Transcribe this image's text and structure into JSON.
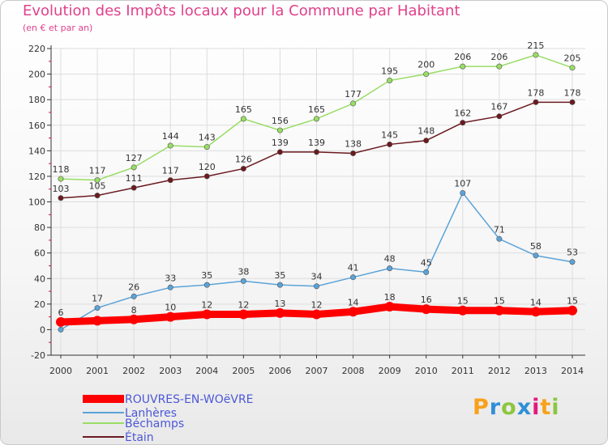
{
  "title": "Evolution des Impôts locaux pour la Commune par Habitant",
  "subtitle": "(en € et par an)",
  "brand": {
    "letters": [
      "P",
      "r",
      "o",
      "x",
      "i",
      "t",
      "i"
    ],
    "colors": [
      "#f7a21b",
      "#2f8fd8",
      "#8cc63f",
      "#2f8fd8",
      "#e2197c",
      "#f7a21b",
      "#8cc63f"
    ]
  },
  "colors": {
    "title": "#e0418c",
    "axis": "#333333",
    "grid": "#dddddd",
    "ticks_minor": "#d2123a",
    "legend_text": "#4c58d6"
  },
  "chart_data": {
    "type": "line",
    "title": "Evolution des Impôts locaux pour la Commune par Habitant",
    "subtitle": "(en € et par an)",
    "x": [
      "2000",
      "2001",
      "2002",
      "2003",
      "2004",
      "2005",
      "2006",
      "2007",
      "2008",
      "2009",
      "2010",
      "2011",
      "2012",
      "2013",
      "2014"
    ],
    "ylim": [
      -20,
      220
    ],
    "yticks": [
      -20,
      0,
      20,
      40,
      60,
      80,
      100,
      120,
      140,
      160,
      180,
      200,
      220
    ],
    "grid": true,
    "legend_position": "bottom-left",
    "series": [
      {
        "name": "ROUVRES-EN-WOëVRE",
        "color": "#ff0000",
        "values": [
          6,
          7,
          8,
          10,
          12,
          12,
          13,
          12,
          14,
          18,
          16,
          15,
          15,
          14,
          15
        ]
      },
      {
        "name": "Lanhères",
        "color": "#5ba3d8",
        "values": [
          0,
          17,
          26,
          33,
          35,
          38,
          35,
          34,
          41,
          48,
          45,
          107,
          71,
          58,
          53
        ]
      },
      {
        "name": "Béchamps",
        "color": "#99dd66",
        "values": [
          118,
          117,
          127,
          144,
          143,
          165,
          156,
          165,
          177,
          195,
          200,
          206,
          206,
          215,
          205
        ]
      },
      {
        "name": "Étain",
        "color": "#6b1a1f",
        "values": [
          103,
          105,
          111,
          117,
          120,
          126,
          139,
          139,
          138,
          145,
          148,
          162,
          167,
          178,
          178
        ]
      }
    ],
    "data_labels": [
      [
        6,
        null,
        8,
        10,
        12,
        12,
        13,
        12,
        14,
        18,
        16,
        15,
        15,
        14,
        15
      ],
      [
        null,
        17,
        26,
        33,
        35,
        38,
        35,
        34,
        41,
        48,
        45,
        107,
        71,
        58,
        53
      ],
      [
        118,
        117,
        127,
        144,
        143,
        165,
        156,
        165,
        177,
        195,
        200,
        206,
        206,
        215,
        205
      ],
      [
        103,
        105,
        111,
        117,
        120,
        126,
        139,
        139,
        138,
        145,
        148,
        162,
        167,
        178,
        178
      ]
    ]
  }
}
